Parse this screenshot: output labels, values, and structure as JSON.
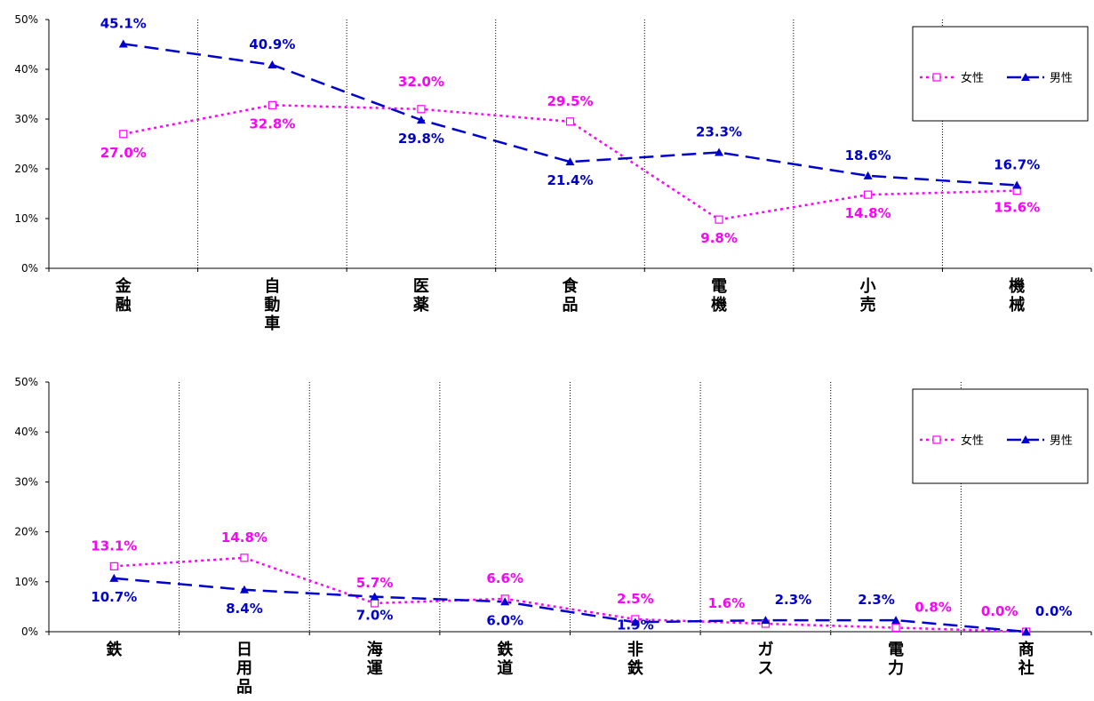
{
  "colors": {
    "female": "#ff00ff",
    "male": "#0000cc"
  },
  "chart_data": [
    {
      "type": "line",
      "categories": [
        "金融",
        "自動車",
        "医薬",
        "食品",
        "電機",
        "小売",
        "機械"
      ],
      "ylim": [
        0,
        50
      ],
      "yticks": [
        "0%",
        "10%",
        "20%",
        "30%",
        "40%",
        "50%"
      ],
      "legend_position": "top-right",
      "series": [
        {
          "name": "女性",
          "values": [
            27.0,
            32.8,
            32.0,
            29.5,
            9.8,
            14.8,
            15.6
          ],
          "labels": [
            "27.0%",
            "32.8%",
            "32.0%",
            "29.5%",
            "9.8%",
            "14.8%",
            "15.6%"
          ]
        },
        {
          "name": "男性",
          "values": [
            45.1,
            40.9,
            29.8,
            21.4,
            23.3,
            18.6,
            16.7
          ],
          "labels": [
            "45.1%",
            "40.9%",
            "29.8%",
            "21.4%",
            "23.3%",
            "18.6%",
            "16.7%"
          ]
        }
      ]
    },
    {
      "type": "line",
      "categories": [
        "鉄",
        "日用品",
        "海運",
        "鉄道",
        "非鉄",
        "ガス",
        "電力",
        "商社"
      ],
      "ylim": [
        0,
        50
      ],
      "yticks": [
        "0%",
        "10%",
        "20%",
        "30%",
        "40%",
        "50%"
      ],
      "legend_position": "top-right",
      "series": [
        {
          "name": "女性",
          "values": [
            13.1,
            14.8,
            5.7,
            6.6,
            2.5,
            1.6,
            0.8,
            0.0
          ],
          "labels": [
            "13.1%",
            "14.8%",
            "5.7%",
            "6.6%",
            "2.5%",
            "1.6%",
            "0.8%",
            "0.0%"
          ]
        },
        {
          "name": "男性",
          "values": [
            10.7,
            8.4,
            7.0,
            6.0,
            1.9,
            2.3,
            2.3,
            0.0
          ],
          "labels": [
            "10.7%",
            "8.4%",
            "7.0%",
            "6.0%",
            "1.9%",
            "2.3%",
            "2.3%",
            "0.0%"
          ]
        }
      ]
    }
  ]
}
